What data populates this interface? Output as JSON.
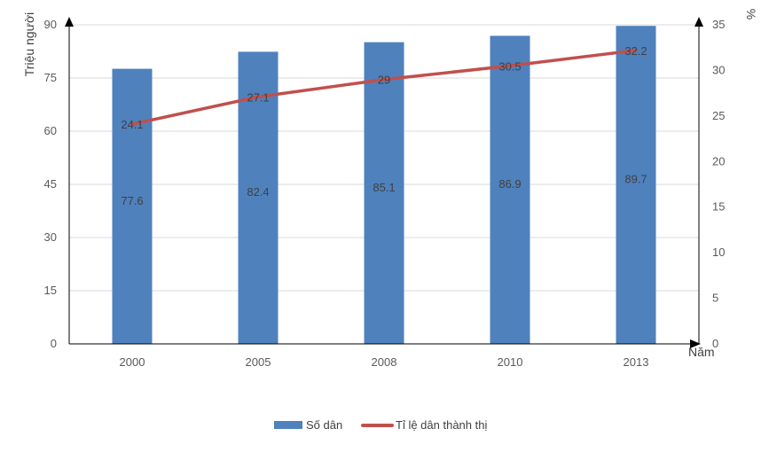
{
  "chart_data": {
    "type": "bar",
    "categories": [
      "2000",
      "2005",
      "2008",
      "2010",
      "2013"
    ],
    "series": [
      {
        "name": "Số dân",
        "type": "bar",
        "axis": "left",
        "color": "#4F81BD",
        "values": [
          77.6,
          82.4,
          85.1,
          86.9,
          89.7
        ],
        "labels": [
          "77.6",
          "82.4",
          "85.1",
          "86.9",
          "89.7"
        ]
      },
      {
        "name": "Tỉ lệ dân thành thị",
        "type": "line",
        "axis": "right",
        "color": "#C0504D",
        "values": [
          24.1,
          27.1,
          29,
          30.5,
          32.2
        ],
        "labels": [
          "24.1",
          "27.1",
          "29",
          "30.5",
          "32.2"
        ]
      }
    ],
    "y_left": {
      "label": "Triệu người",
      "ylim": [
        0,
        90
      ],
      "ticks": [
        "0",
        "15",
        "30",
        "45",
        "60",
        "75",
        "90"
      ]
    },
    "y_right": {
      "label": "%",
      "ylim": [
        0,
        35
      ],
      "ticks": [
        "0",
        "5",
        "10",
        "15",
        "20",
        "25",
        "30",
        "35"
      ]
    },
    "xlabel": "Năm",
    "grid": true,
    "legend_position": "bottom"
  }
}
